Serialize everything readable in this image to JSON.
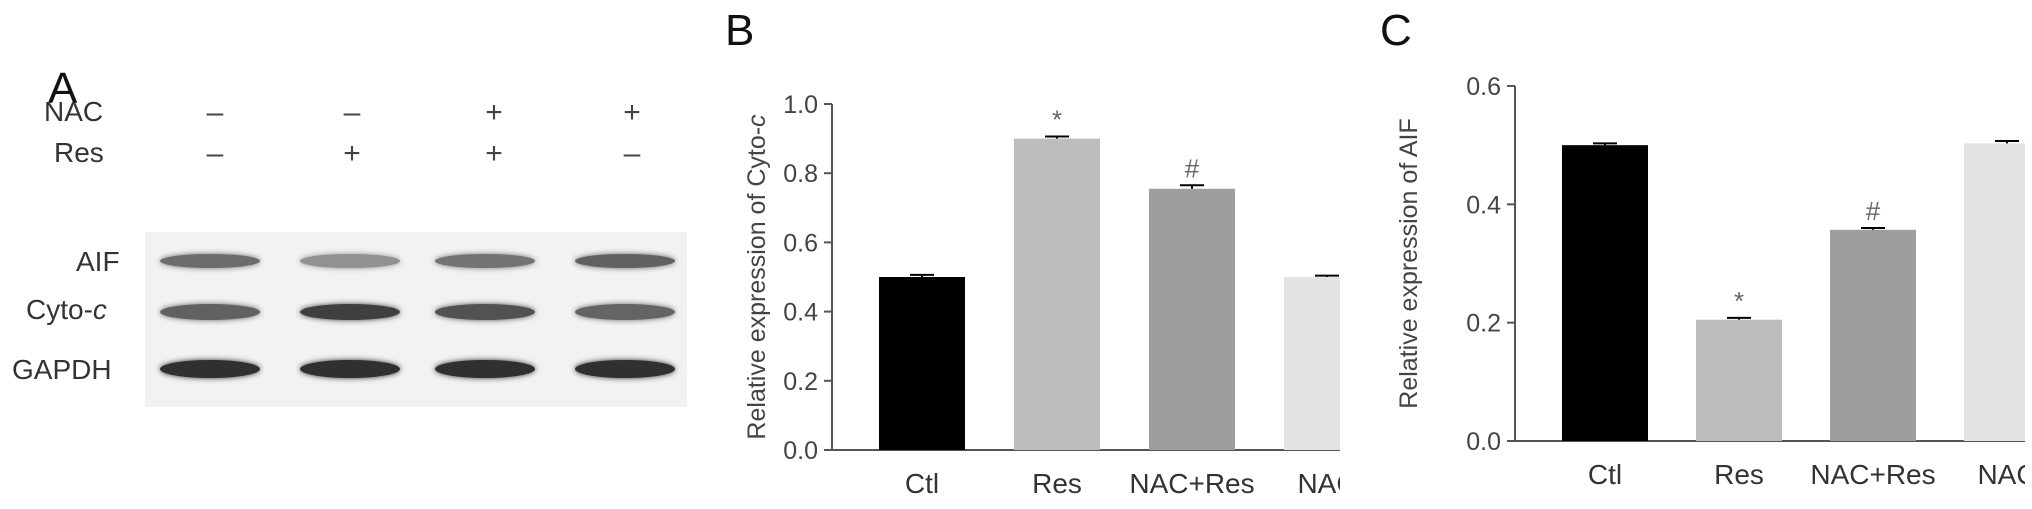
{
  "panel_a": {
    "letter": "A",
    "treatments": [
      {
        "label": "NAC",
        "signs": [
          "–",
          "–",
          "+",
          "+"
        ]
      },
      {
        "label": "Res",
        "signs": [
          "–",
          "+",
          "+",
          "–"
        ]
      }
    ],
    "proteins": [
      {
        "label": "AIF",
        "italic_suffix": "",
        "band_intensity": [
          0.55,
          0.3,
          0.5,
          0.62
        ]
      },
      {
        "label": "Cyto-",
        "italic_suffix": "c",
        "band_intensity": [
          0.62,
          0.85,
          0.72,
          0.6
        ]
      },
      {
        "label": "GAPDH",
        "italic_suffix": "",
        "band_intensity": [
          0.95,
          0.95,
          0.95,
          0.95
        ]
      }
    ]
  },
  "chart_data": [
    {
      "panel": "B",
      "type": "bar",
      "categories": [
        "Ctl",
        "Res",
        "NAC+Res",
        "NAC"
      ],
      "values": [
        0.5,
        0.9,
        0.755,
        0.5
      ],
      "errors": [
        0.006,
        0.006,
        0.01,
        0.004
      ],
      "annotations": [
        "",
        "*",
        "#",
        ""
      ],
      "colors": [
        "#000000",
        "#bdbdbd",
        "#9e9e9e",
        "#e3e3e3"
      ],
      "ylabel": "Relative expression of  Cyto-",
      "ylabel_italic": "c",
      "ylim": [
        0,
        1.0
      ],
      "yticks": [
        "0.0",
        "0.2",
        "0.4",
        "0.6",
        "0.8",
        "1.0"
      ]
    },
    {
      "panel": "C",
      "type": "bar",
      "categories": [
        "Ctl",
        "Res",
        "NAC+Res",
        "NAC"
      ],
      "values": [
        0.5,
        0.205,
        0.357,
        0.503
      ],
      "errors": [
        0.003,
        0.003,
        0.003,
        0.004
      ],
      "annotations": [
        "",
        "*",
        "#",
        ""
      ],
      "colors": [
        "#000000",
        "#bdbdbd",
        "#9e9e9e",
        "#e3e3e3"
      ],
      "ylabel": "Relative expression of AIF",
      "ylabel_italic": "",
      "ylim": [
        0,
        0.6
      ],
      "yticks": [
        "0.0",
        "0.2",
        "0.4",
        "0.6"
      ]
    }
  ]
}
